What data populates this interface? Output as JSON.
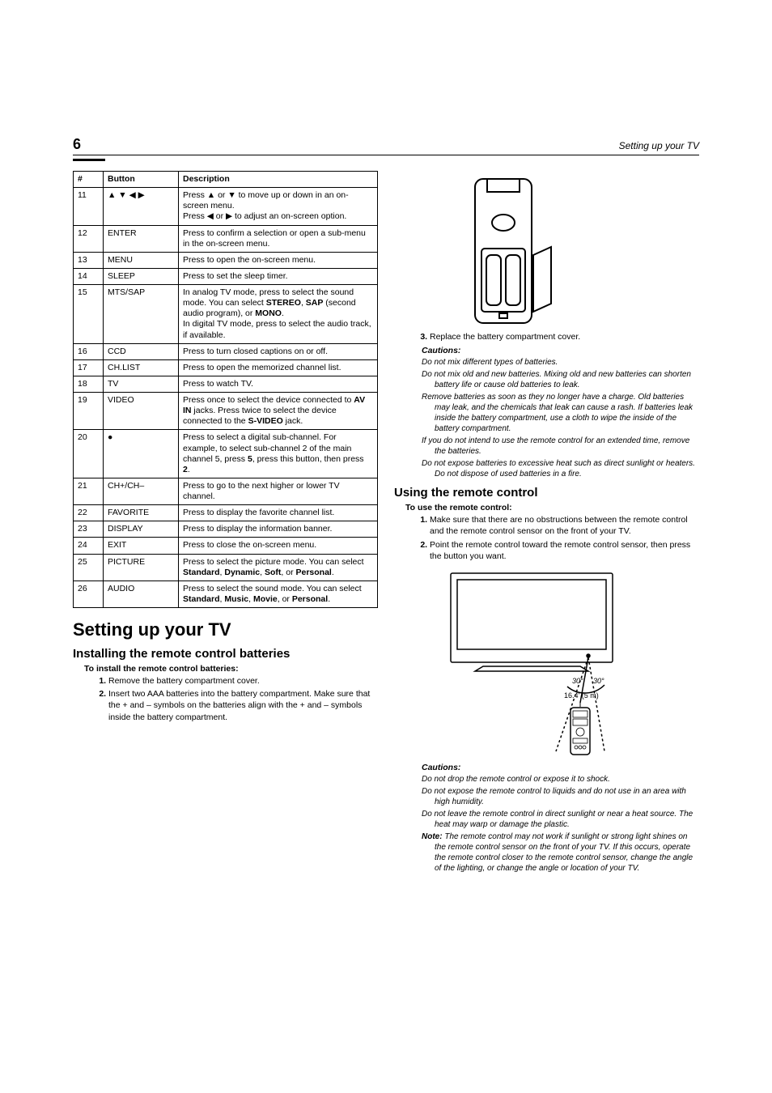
{
  "page": {
    "number": "6",
    "running_title": "Setting up your TV"
  },
  "table": {
    "headers": {
      "num": "#",
      "button": "Button",
      "description": "Description"
    },
    "rows": [
      {
        "num": "11",
        "button": "▲ ▼ ◀ ▶",
        "desc_html": "Press ▲ or ▼ to move up or down in an on-screen menu.<br>Press ◀ or ▶ to adjust an on-screen option."
      },
      {
        "num": "12",
        "button": "ENTER",
        "desc_html": "Press to confirm a selection or open a sub-menu in the on-screen menu."
      },
      {
        "num": "13",
        "button": "MENU",
        "desc_html": "Press to open the on-screen menu."
      },
      {
        "num": "14",
        "button": "SLEEP",
        "desc_html": "Press to set the sleep timer."
      },
      {
        "num": "15",
        "button": "MTS/SAP",
        "desc_html": "In analog TV mode, press to select the sound mode. You can select <b>STEREO</b>, <b>SAP</b> (second audio program), or <b>MONO</b>.<br>In digital TV mode, press to select the audio track, if available."
      },
      {
        "num": "16",
        "button": "CCD",
        "desc_html": "Press to turn closed captions on or off."
      },
      {
        "num": "17",
        "button": "CH.LIST",
        "desc_html": "Press to open the memorized channel list."
      },
      {
        "num": "18",
        "button": "TV",
        "desc_html": "Press to watch TV."
      },
      {
        "num": "19",
        "button": "VIDEO",
        "desc_html": "Press once to select the device connected to <b>AV IN</b> jacks. Press twice to select the device connected to the <b>S-VIDEO</b> jack."
      },
      {
        "num": "20",
        "button": "●",
        "desc_html": "Press to select a digital sub-channel. For example, to select sub-channel 2 of the main channel 5, press <b>5</b>, press this button, then press <b>2</b>."
      },
      {
        "num": "21",
        "button": "CH+/CH–",
        "desc_html": "Press to go to the next higher or lower TV channel."
      },
      {
        "num": "22",
        "button": "FAVORITE",
        "desc_html": "Press to display the favorite channel list."
      },
      {
        "num": "23",
        "button": "DISPLAY",
        "desc_html": "Press to display the information banner."
      },
      {
        "num": "24",
        "button": "EXIT",
        "desc_html": "Press to close the on-screen menu."
      },
      {
        "num": "25",
        "button": "PICTURE",
        "desc_html": "Press to select the picture mode. You can select <b>Standard</b>, <b>Dynamic</b>, <b>Soft</b>, or <b>Personal</b>."
      },
      {
        "num": "26",
        "button": "AUDIO",
        "desc_html": "Press to select the sound mode. You can select <b>Standard</b>, <b>Music</b>, <b>Movie</b>, or <b>Personal</b>."
      }
    ]
  },
  "setup": {
    "h1": "Setting up your TV",
    "h2_install": "Installing the remote control batteries",
    "install_lead": "To install the remote control batteries:",
    "install_steps": [
      "Remove the battery compartment cover.",
      "Insert two AAA batteries into the battery compartment. Make sure that the + and – symbols on the batteries align with the + and – symbols inside the battery compartment."
    ],
    "step3": "Replace the battery compartment cover.",
    "cautions_label": "Cautions:",
    "battery_cautions": [
      "Do not mix different types of batteries.",
      "Do not mix old and new batteries. Mixing old and new batteries can shorten battery life or cause old batteries to leak.",
      "Remove batteries as soon as they no longer have a charge. Old batteries may leak, and the chemicals that leak can cause a rash. If batteries leak inside the battery compartment, use a cloth to wipe the inside of the battery compartment.",
      "If you do not intend to use the remote control for an extended time, remove the batteries.",
      "Do not expose batteries to excessive heat such as direct sunlight or heaters. Do not dispose of used batteries in a fire."
    ],
    "h2_use": "Using the remote control",
    "use_lead": "To use the remote control:",
    "use_steps": [
      "Make sure that there are no obstructions between the remote control and the remote control sensor on the front of your TV.",
      "Point the remote control toward the remote control sensor, then press the button you want."
    ],
    "range_angle_left": "30°",
    "range_angle_right": "30°",
    "range_distance": "16.4' (5 m)",
    "remote_cautions": [
      "Do not drop the remote control or expose it to shock.",
      "Do not expose the remote control to liquids and do not use in an area with high humidity.",
      "Do not leave the remote control in direct sunlight or near a heat source. The heat may warp or damage the plastic."
    ],
    "note_label": "Note:",
    "note_text": "The remote control may not work if sunlight or strong light shines on the remote control sensor on the front of your TV. If this occurs, operate the remote control closer to the remote control sensor, change the angle of the lighting, or change the angle or location of your TV."
  }
}
